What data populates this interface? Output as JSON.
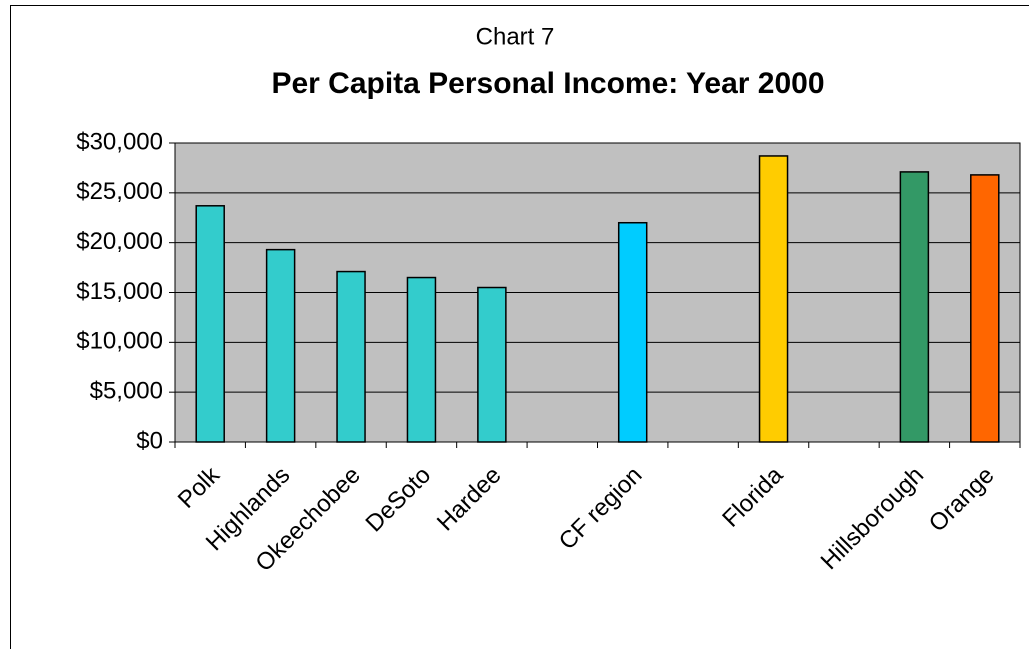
{
  "chart_data": {
    "type": "bar",
    "chart_label": "Chart 7",
    "title": "Per Capita Personal Income: Year 2000",
    "categories": [
      "Polk",
      "Highlands",
      "Okeechobee",
      "DeSoto",
      "Hardee",
      null,
      "CF region",
      null,
      "Florida",
      null,
      "Hillsborough",
      "Orange"
    ],
    "values": [
      23700,
      19300,
      17100,
      16500,
      15500,
      null,
      22000,
      null,
      28700,
      null,
      27100,
      26800
    ],
    "colors": [
      "#33cccc",
      "#33cccc",
      "#33cccc",
      "#33cccc",
      "#33cccc",
      null,
      "#00ccff",
      null,
      "#ffcc00",
      null,
      "#339966",
      "#ff6600"
    ],
    "ylim": [
      0,
      30000
    ],
    "yticks": [
      {
        "value": 0,
        "label": "$0"
      },
      {
        "value": 5000,
        "label": "$5,000"
      },
      {
        "value": 10000,
        "label": "$10,000"
      },
      {
        "value": 15000,
        "label": "$15,000"
      },
      {
        "value": 20000,
        "label": "$20,000"
      },
      {
        "value": 25000,
        "label": "$25,000"
      },
      {
        "value": 30000,
        "label": "$30,000"
      }
    ],
    "grid": true
  }
}
